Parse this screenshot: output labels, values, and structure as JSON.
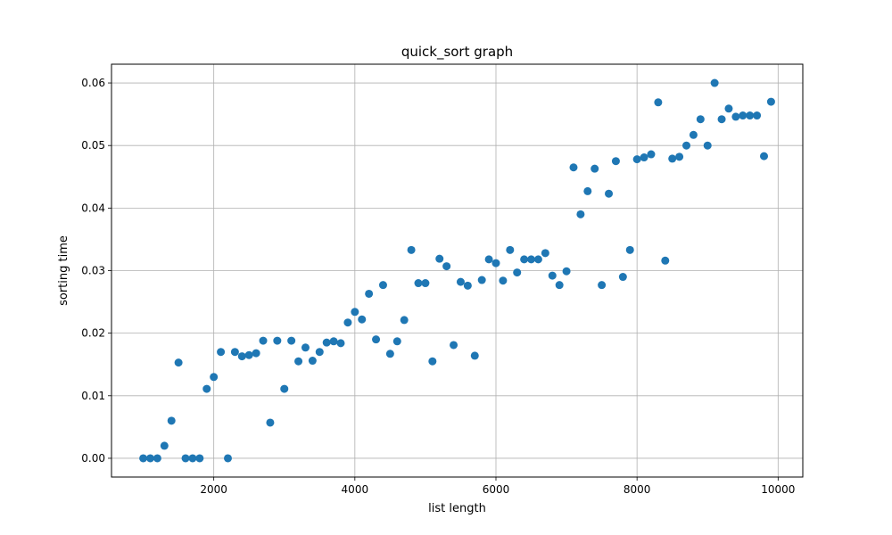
{
  "chart_data": {
    "type": "scatter",
    "title": "quick_sort graph",
    "xlabel": "list length",
    "ylabel": "sorting time",
    "xlim": [
      550,
      10350
    ],
    "ylim": [
      -0.003,
      0.063
    ],
    "x_ticks": [
      2000,
      4000,
      6000,
      8000,
      10000
    ],
    "x_tick_labels": [
      "2000",
      "4000",
      "6000",
      "8000",
      "10000"
    ],
    "y_ticks": [
      0.0,
      0.01,
      0.02,
      0.03,
      0.04,
      0.05,
      0.06
    ],
    "y_tick_labels": [
      "0.00",
      "0.01",
      "0.02",
      "0.03",
      "0.04",
      "0.05",
      "0.06"
    ],
    "grid": true,
    "series": [
      {
        "color": "#1f77b4",
        "points": [
          [
            1000,
            0.0
          ],
          [
            1100,
            0.0
          ],
          [
            1200,
            0.0
          ],
          [
            1300,
            0.002
          ],
          [
            1400,
            0.006
          ],
          [
            1500,
            0.0153
          ],
          [
            1600,
            0.0
          ],
          [
            1700,
            0.0
          ],
          [
            1800,
            0.0
          ],
          [
            1900,
            0.0111
          ],
          [
            2000,
            0.013
          ],
          [
            2100,
            0.017
          ],
          [
            2200,
            0.0
          ],
          [
            2300,
            0.017
          ],
          [
            2400,
            0.0163
          ],
          [
            2500,
            0.0165
          ],
          [
            2600,
            0.0168
          ],
          [
            2700,
            0.0188
          ],
          [
            2800,
            0.0057
          ],
          [
            2900,
            0.0188
          ],
          [
            3000,
            0.0111
          ],
          [
            3100,
            0.0188
          ],
          [
            3200,
            0.0155
          ],
          [
            3300,
            0.0177
          ],
          [
            3400,
            0.0156
          ],
          [
            3500,
            0.017
          ],
          [
            3600,
            0.0185
          ],
          [
            3700,
            0.0187
          ],
          [
            3800,
            0.0184
          ],
          [
            3900,
            0.0217
          ],
          [
            4000,
            0.0234
          ],
          [
            4100,
            0.0222
          ],
          [
            4200,
            0.0263
          ],
          [
            4300,
            0.019
          ],
          [
            4400,
            0.0277
          ],
          [
            4500,
            0.0167
          ],
          [
            4600,
            0.0187
          ],
          [
            4700,
            0.0221
          ],
          [
            4800,
            0.0333
          ],
          [
            4900,
            0.028
          ],
          [
            5000,
            0.028
          ],
          [
            5100,
            0.0155
          ],
          [
            5200,
            0.0319
          ],
          [
            5300,
            0.0307
          ],
          [
            5400,
            0.0181
          ],
          [
            5500,
            0.0282
          ],
          [
            5600,
            0.0276
          ],
          [
            5700,
            0.0164
          ],
          [
            5800,
            0.0285
          ],
          [
            5900,
            0.0318
          ],
          [
            6000,
            0.0312
          ],
          [
            6100,
            0.0284
          ],
          [
            6200,
            0.0333
          ],
          [
            6300,
            0.0297
          ],
          [
            6400,
            0.0318
          ],
          [
            6500,
            0.0318
          ],
          [
            6600,
            0.0318
          ],
          [
            6700,
            0.0328
          ],
          [
            6800,
            0.0292
          ],
          [
            6900,
            0.0277
          ],
          [
            7000,
            0.0299
          ],
          [
            7100,
            0.0465
          ],
          [
            7200,
            0.039
          ],
          [
            7300,
            0.0427
          ],
          [
            7400,
            0.0463
          ],
          [
            7500,
            0.0277
          ],
          [
            7600,
            0.0423
          ],
          [
            7700,
            0.0475
          ],
          [
            7800,
            0.029
          ],
          [
            7900,
            0.0333
          ],
          [
            8000,
            0.0478
          ],
          [
            8100,
            0.0481
          ],
          [
            8200,
            0.0486
          ],
          [
            8300,
            0.0569
          ],
          [
            8400,
            0.0316
          ],
          [
            8500,
            0.0479
          ],
          [
            8600,
            0.0482
          ],
          [
            8700,
            0.05
          ],
          [
            8800,
            0.0517
          ],
          [
            8900,
            0.0542
          ],
          [
            9000,
            0.05
          ],
          [
            9100,
            0.06
          ],
          [
            9200,
            0.0542
          ],
          [
            9300,
            0.0559
          ],
          [
            9400,
            0.0546
          ],
          [
            9500,
            0.0548
          ],
          [
            9600,
            0.0548
          ],
          [
            9700,
            0.0548
          ],
          [
            9800,
            0.0483
          ],
          [
            9900,
            0.057
          ]
        ]
      }
    ]
  }
}
